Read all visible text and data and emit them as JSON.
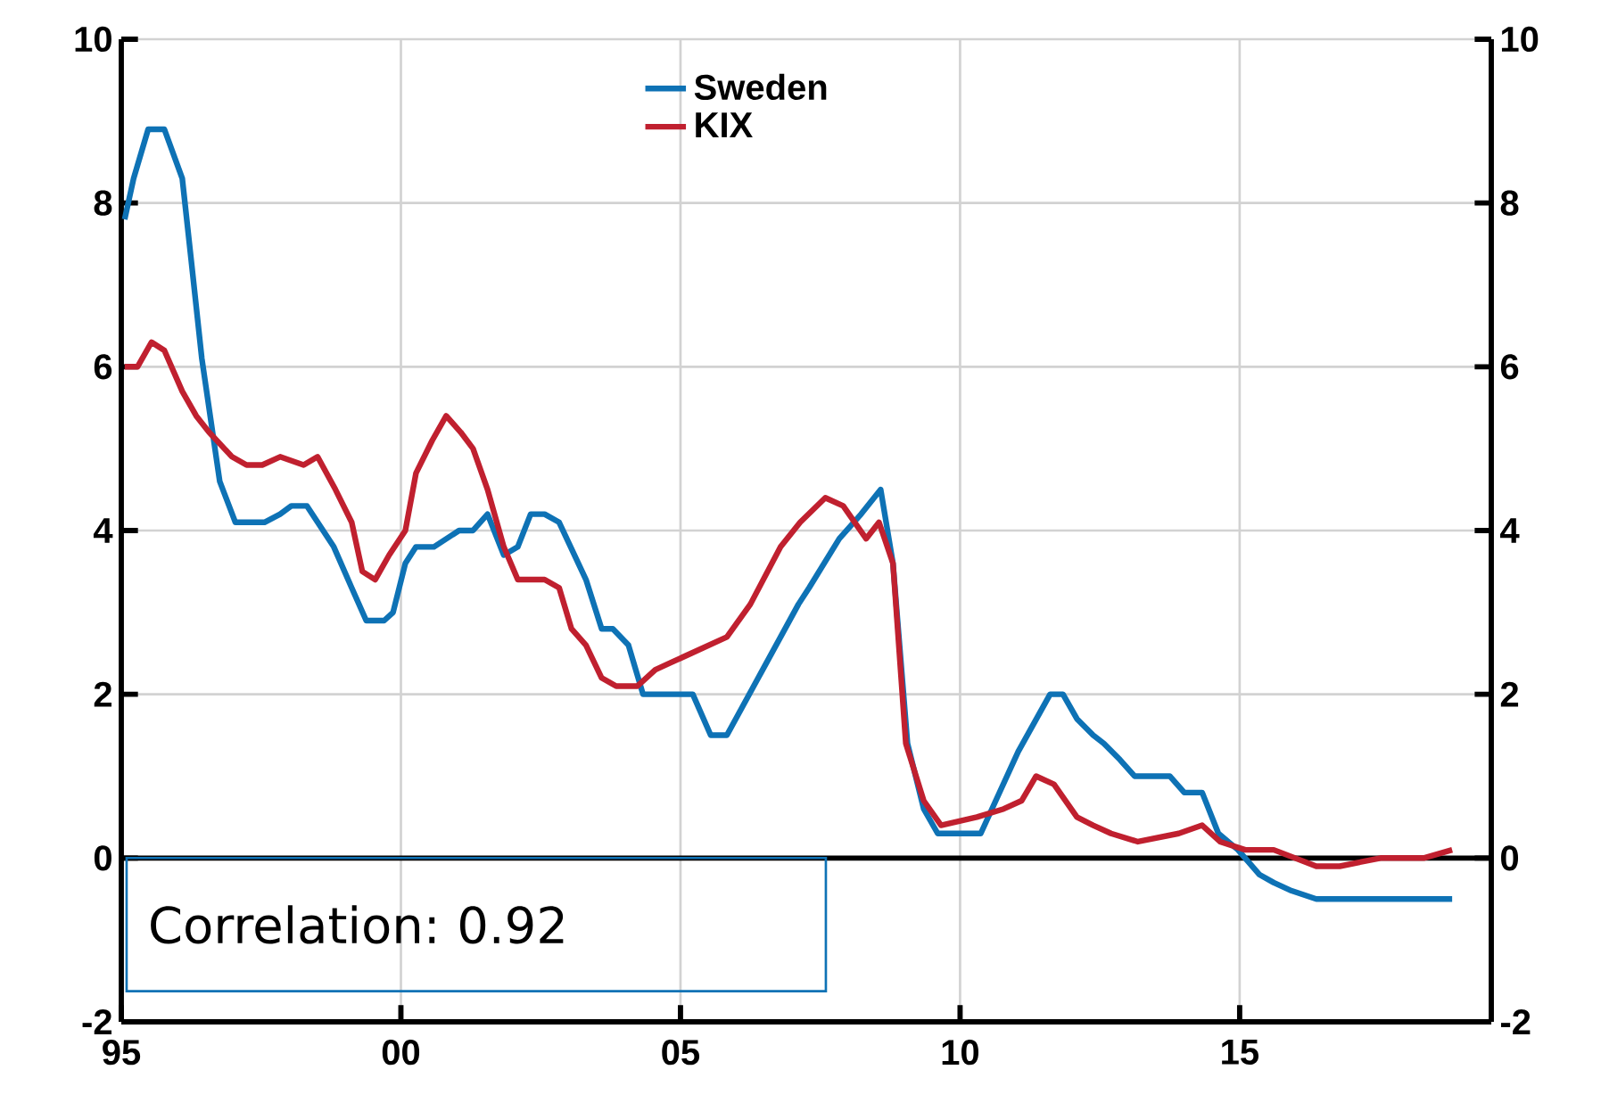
{
  "chart_data": {
    "type": "line",
    "xlim": [
      1995,
      2019.5
    ],
    "xticks": [
      {
        "value": 1995,
        "label": "95"
      },
      {
        "value": 2000,
        "label": "00"
      },
      {
        "value": 2005,
        "label": "05"
      },
      {
        "value": 2010,
        "label": "10"
      },
      {
        "value": 2015,
        "label": "15"
      }
    ],
    "ylim": [
      -2,
      10
    ],
    "yticks": [
      -2,
      0,
      2,
      4,
      6,
      8,
      10
    ],
    "y2lim": [
      -2,
      10
    ],
    "y2ticks": [
      -2,
      0,
      2,
      4,
      6,
      8,
      10
    ],
    "grid": true,
    "legend": "top",
    "marker": "none",
    "line_style": "solid",
    "ref_lines": [
      {
        "axis": "y",
        "value": 0,
        "color": "#000000"
      }
    ],
    "annotations": [
      "Correlation: 0.92"
    ],
    "series": [
      {
        "name": "Sweden",
        "color": "#0e72b5",
        "x": [
          1995.06,
          1995.22,
          1995.48,
          1995.77,
          1996.09,
          1996.25,
          1996.44,
          1996.76,
          1997.04,
          1997.56,
          1997.84,
          1998.04,
          1998.32,
          1998.8,
          1999.12,
          1999.38,
          1999.7,
          1999.86,
          2000.08,
          2000.27,
          2000.59,
          2001.04,
          2001.29,
          2001.55,
          2001.84,
          2002.09,
          2002.32,
          2002.57,
          2002.83,
          2003.31,
          2003.59,
          2003.79,
          2004.07,
          2004.33,
          2005.22,
          2005.54,
          2005.83,
          2006.47,
          2006.79,
          2007.11,
          2007.3,
          2007.84,
          2008.23,
          2008.58,
          2008.8,
          2009.06,
          2009.35,
          2009.6,
          2010.37,
          2011.04,
          2011.61,
          2011.84,
          2012.09,
          2012.38,
          2012.57,
          2012.86,
          2013.12,
          2013.75,
          2014.01,
          2014.33,
          2014.62,
          2014.97,
          2015.35,
          2015.61,
          2015.93,
          2016.37,
          2018.8
        ],
        "values": [
          7.8,
          8.3,
          8.9,
          8.9,
          8.3,
          7.3,
          6.1,
          4.6,
          4.1,
          4.1,
          4.2,
          4.3,
          4.3,
          3.8,
          3.3,
          2.9,
          2.9,
          3.0,
          3.6,
          3.8,
          3.8,
          4.0,
          4.0,
          4.2,
          3.7,
          3.8,
          4.2,
          4.2,
          4.1,
          3.4,
          2.8,
          2.8,
          2.6,
          2.0,
          2.0,
          1.5,
          1.5,
          2.3,
          2.7,
          3.1,
          3.3,
          3.9,
          4.2,
          4.5,
          3.6,
          1.4,
          0.6,
          0.3,
          0.3,
          1.3,
          2.0,
          2.0,
          1.7,
          1.5,
          1.4,
          1.2,
          1.0,
          1.0,
          0.8,
          0.8,
          0.3,
          0.1,
          -0.2,
          -0.3,
          -0.4,
          -0.5,
          -0.5
        ]
      },
      {
        "name": "KIX",
        "color": "#c0202f",
        "x": [
          1995.06,
          1995.29,
          1995.54,
          1995.77,
          1996.09,
          1996.34,
          1996.57,
          1996.98,
          1997.24,
          1997.52,
          1997.84,
          1998.26,
          1998.51,
          1998.83,
          1999.12,
          1999.31,
          1999.54,
          1999.79,
          2000.08,
          2000.27,
          2000.56,
          2000.81,
          2001.07,
          2001.29,
          2001.55,
          2001.84,
          2002.09,
          2002.57,
          2002.83,
          2003.05,
          2003.31,
          2003.59,
          2003.85,
          2004.23,
          2004.55,
          2004.87,
          2005.19,
          2005.83,
          2006.25,
          2006.79,
          2007.14,
          2007.59,
          2007.91,
          2008.32,
          2008.55,
          2008.8,
          2009.03,
          2009.35,
          2009.66,
          2010.3,
          2010.78,
          2011.1,
          2011.36,
          2011.68,
          2012.09,
          2012.38,
          2012.7,
          2013.18,
          2013.91,
          2014.33,
          2014.65,
          2015.1,
          2015.61,
          2016.37,
          2016.79,
          2017.52,
          2018.29,
          2018.8
        ],
        "values": [
          6.0,
          6.0,
          6.3,
          6.2,
          5.7,
          5.4,
          5.2,
          4.9,
          4.8,
          4.8,
          4.9,
          4.8,
          4.9,
          4.5,
          4.1,
          3.5,
          3.4,
          3.7,
          4.0,
          4.7,
          5.1,
          5.4,
          5.2,
          5.0,
          4.5,
          3.8,
          3.4,
          3.4,
          3.3,
          2.8,
          2.6,
          2.2,
          2.1,
          2.1,
          2.3,
          2.4,
          2.5,
          2.7,
          3.1,
          3.8,
          4.1,
          4.4,
          4.3,
          3.9,
          4.1,
          3.6,
          1.4,
          0.7,
          0.4,
          0.5,
          0.6,
          0.7,
          1.0,
          0.9,
          0.5,
          0.4,
          0.3,
          0.2,
          0.3,
          0.4,
          0.2,
          0.1,
          0.1,
          -0.1,
          -0.1,
          0.0,
          0.0,
          0.1
        ]
      }
    ]
  }
}
